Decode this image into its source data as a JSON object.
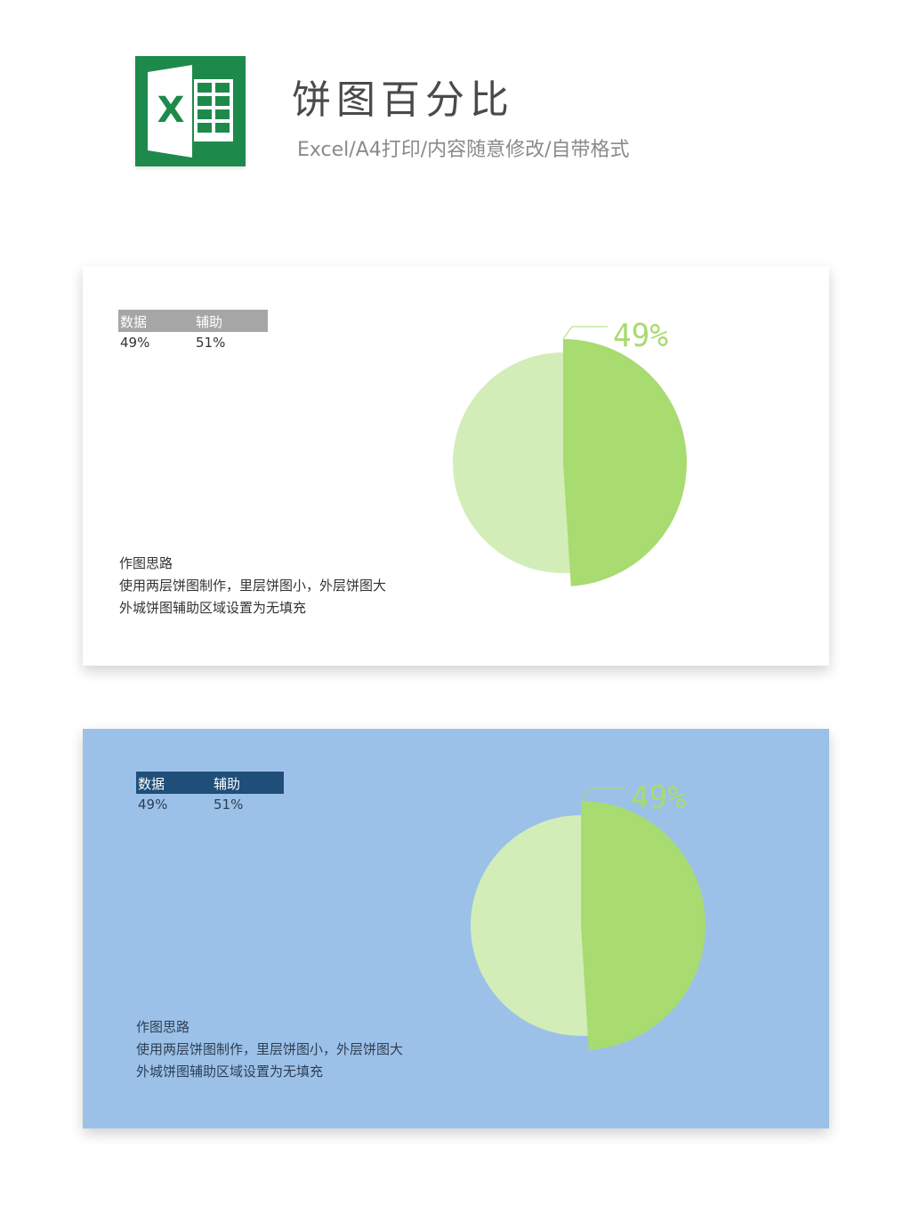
{
  "header": {
    "logo_letter": "X",
    "title": "饼图百分比",
    "subtitle": "Excel/A4打印/内容随意修改/自带格式"
  },
  "panels": [
    {
      "theme": "white",
      "table": {
        "headers": [
          "数据",
          "辅助"
        ],
        "values": [
          "49%",
          "51%"
        ]
      },
      "notes": {
        "heading": "作图思路",
        "line1": "使用两层饼图制作，里层饼图小，外层饼图大",
        "line2": "外城饼图辅助区域设置为无填充"
      }
    },
    {
      "theme": "blue",
      "table": {
        "headers": [
          "数据",
          "辅助"
        ],
        "values": [
          "49%",
          "51%"
        ]
      },
      "notes": {
        "heading": "作图思路",
        "line1": "使用两层饼图制作，里层饼图小，外层饼图大",
        "line2": "外城饼图辅助区域设置为无填充"
      }
    }
  ],
  "chart_data": [
    {
      "type": "pie",
      "categories": [
        "数据",
        "辅助"
      ],
      "values": [
        49,
        51
      ],
      "data_label": "49%",
      "outer_value": 49,
      "inner_value": 100,
      "colors": {
        "highlight": "#a8db70",
        "background": "#d3edb8",
        "label": "#a8db70"
      }
    },
    {
      "type": "pie",
      "categories": [
        "数据",
        "辅助"
      ],
      "values": [
        49,
        51
      ],
      "data_label": "49%",
      "outer_value": 49,
      "inner_value": 100,
      "colors": {
        "highlight": "#a8db70",
        "background": "#d3edb8",
        "label": "#a8db70"
      }
    }
  ]
}
